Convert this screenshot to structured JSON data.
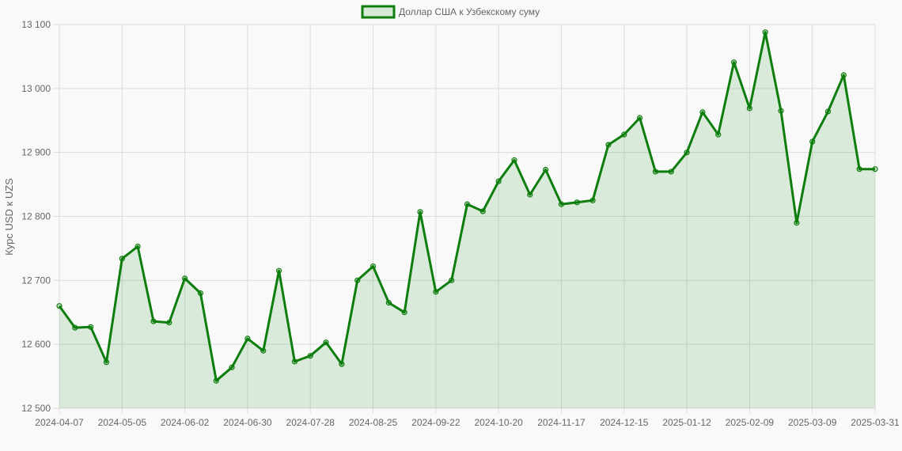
{
  "legend": {
    "label": "Доллар США к Узбекскому суму",
    "swatch_fill": "#d6ead6",
    "swatch_stroke": "#0d7d0d"
  },
  "colors": {
    "line": "#0d7d0d",
    "fill": "rgba(0,128,0,0.12)",
    "grid": "#dcdcdc",
    "background": "#f9f9f9"
  },
  "chart_data": {
    "type": "area",
    "title": "",
    "legend": [
      "Доллар США к Узбекскому суму"
    ],
    "legend_position": "top",
    "xlabel": "",
    "ylabel": "Курс USD к UZS",
    "ylim": [
      12500,
      13100
    ],
    "grid": true,
    "y_ticks": [
      12500,
      12600,
      12700,
      12800,
      12900,
      13000,
      13100
    ],
    "y_tick_labels": [
      "12 500",
      "12 600",
      "12 700",
      "12 800",
      "12 900",
      "13 000",
      "13 100"
    ],
    "x_tick_labels": [
      "2024-04-07",
      "2024-05-05",
      "2024-06-02",
      "2024-06-30",
      "2024-07-28",
      "2024-08-25",
      "2024-09-22",
      "2024-10-20",
      "2024-11-17",
      "2024-12-15",
      "2025-01-12",
      "2025-02-09",
      "2025-03-09",
      "2025-03-31"
    ],
    "x_tick_index": [
      0,
      4,
      8,
      12,
      16,
      20,
      24,
      28,
      32,
      36,
      40,
      44,
      48,
      52
    ],
    "series": [
      {
        "name": "Доллар США к Узбекскому суму",
        "values": [
          12660,
          12626,
          12627,
          12572,
          12734,
          12753,
          12636,
          12634,
          12703,
          12680,
          12543,
          12564,
          12609,
          12590,
          12715,
          12573,
          12582,
          12603,
          12569,
          12700,
          12722,
          12665,
          12650,
          12807,
          12682,
          12700,
          12819,
          12808,
          12855,
          12888,
          12834,
          12873,
          12819,
          12822,
          12825,
          12912,
          12928,
          12954,
          12870,
          12870,
          12900,
          12963,
          12928,
          13041,
          12969,
          13088,
          12965,
          12790,
          12917,
          12964,
          13021,
          12874,
          12874
        ]
      }
    ]
  }
}
